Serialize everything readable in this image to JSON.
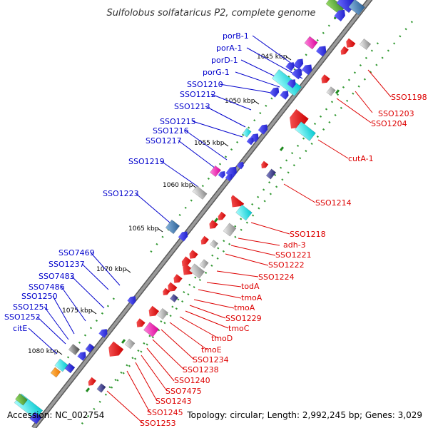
{
  "title": "Sulfolobus solfataricus P2, complete genome",
  "footer": {
    "accession": "Accession: NC_002754",
    "summary": "Topology: circular; Length: 2,992,245 bp; Genes: 3,029"
  },
  "kbp_marks": [
    "1045 kbp",
    "1050 kbp",
    "1055 kbp",
    "1060 kbp",
    "1065 kbp",
    "1070 kbp",
    "1075 kbp",
    "1080 kbp"
  ],
  "labels_left": [
    "porB-1",
    "porA-1",
    "porD-1",
    "porG-1",
    "SSO1210",
    "SSO1212",
    "SSO1213",
    "SSO1215",
    "SSO1216",
    "SSO1217",
    "SSO1219",
    "SSO1223",
    "SSO7469",
    "SSO1237",
    "SSO7483",
    "SSO7486",
    "SSO1250",
    "SSO1251",
    "SSO1252",
    "citE"
  ],
  "labels_right": [
    "SSO1198",
    "SSO1203",
    "SSO1204",
    "cutA-1",
    "SSO1214",
    "SSO1218",
    "adh-3",
    "SSO1221",
    "SSO1222",
    "SSO1224",
    "todA",
    "tmoA",
    "tmoA",
    "SSO1229",
    "tmoC",
    "tmoD",
    "tmoE",
    "SSO1234",
    "SSO1238",
    "SSO1240",
    "SSO7475",
    "SSO1243",
    "SSO1245",
    "SSO1253"
  ],
  "colors": {
    "backbone": "#8c8c8c",
    "forward_label": "#0000cc",
    "reverse_label": "#dd0000",
    "tick_dots": "#339933"
  }
}
